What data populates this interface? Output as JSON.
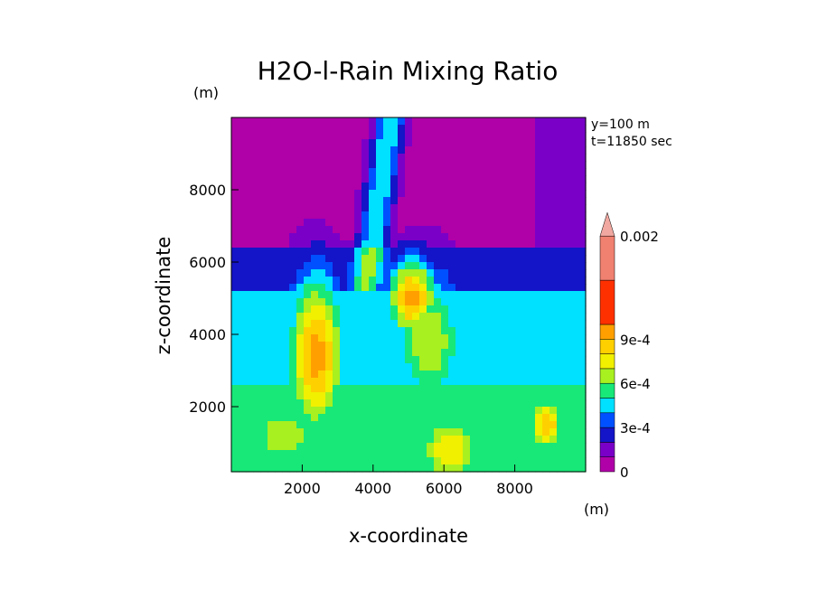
{
  "chart_data": {
    "type": "heatmap",
    "title": "H2O-l-Rain Mixing Ratio",
    "xlabel": "x-coordinate",
    "ylabel": "z-coordinate",
    "xunit": "(m)",
    "yunit": "(m)",
    "xlim": [
      0,
      10000
    ],
    "ylim": [
      200,
      10000
    ],
    "x_ticks": [
      2000,
      4000,
      6000,
      8000
    ],
    "x_tick_labels": [
      "2000",
      "4000",
      "6000",
      "8000"
    ],
    "y_ticks": [
      2000,
      4000,
      6000,
      8000
    ],
    "y_tick_labels": [
      "2000",
      "4000",
      "6000",
      "8000"
    ],
    "annotations": [
      "y=100 m",
      "t=11850 sec"
    ],
    "colorbar": {
      "levels": [
        0,
        0.0001,
        0.0002,
        0.0003,
        0.0004,
        0.0005,
        0.0006,
        0.0007,
        0.0008,
        0.0009,
        0.001,
        0.0015,
        0.002
      ],
      "colors": [
        "#b000a8",
        "#7a00c8",
        "#1414c8",
        "#0050ff",
        "#00e0ff",
        "#18e878",
        "#a8f020",
        "#f0f000",
        "#ffd000",
        "#ffa000",
        "#ff3000",
        "#f08070",
        "#f0a8a0"
      ],
      "tick_labels": [
        {
          "value": 0,
          "label": "0"
        },
        {
          "value": 0.0003,
          "label": "3e-4"
        },
        {
          "value": 0.0006,
          "label": "6e-4"
        },
        {
          "value": 0.0009,
          "label": "9e-4"
        },
        {
          "value": 0.002,
          "label": "0.002"
        }
      ],
      "extend": "max"
    },
    "features": [
      {
        "x": 2400,
        "z": 3400,
        "peak": 0.00095,
        "sx": 650,
        "sz": 1800
      },
      {
        "x": 5100,
        "z": 5000,
        "peak": 0.00095,
        "sx": 550,
        "sz": 900
      },
      {
        "x": 5600,
        "z": 3800,
        "peak": 0.0007,
        "sx": 800,
        "sz": 1600
      },
      {
        "x": 6200,
        "z": 800,
        "peak": 0.0008,
        "sx": 800,
        "sz": 900
      },
      {
        "x": 8900,
        "z": 1500,
        "peak": 0.0009,
        "sx": 400,
        "sz": 600
      },
      {
        "x": 1500,
        "z": 1200,
        "peak": 0.0007,
        "sx": 900,
        "sz": 900
      }
    ]
  }
}
